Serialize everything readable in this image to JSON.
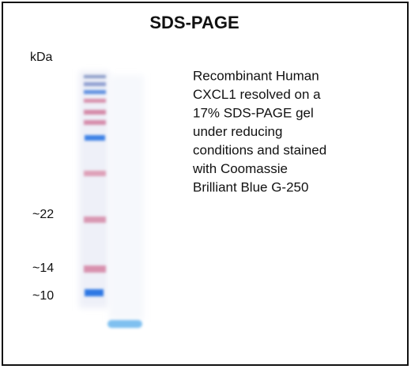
{
  "title": "SDS-PAGE",
  "unit_label": "kDa",
  "markers": [
    "~22",
    "~14",
    "~10"
  ],
  "description": [
    "Recombinant Human",
    "CXCL1 resolved on a",
    "17% SDS-PAGE gel",
    "under reducing",
    "conditions and stained",
    "with Coomassie",
    "Brilliant Blue G-250"
  ]
}
